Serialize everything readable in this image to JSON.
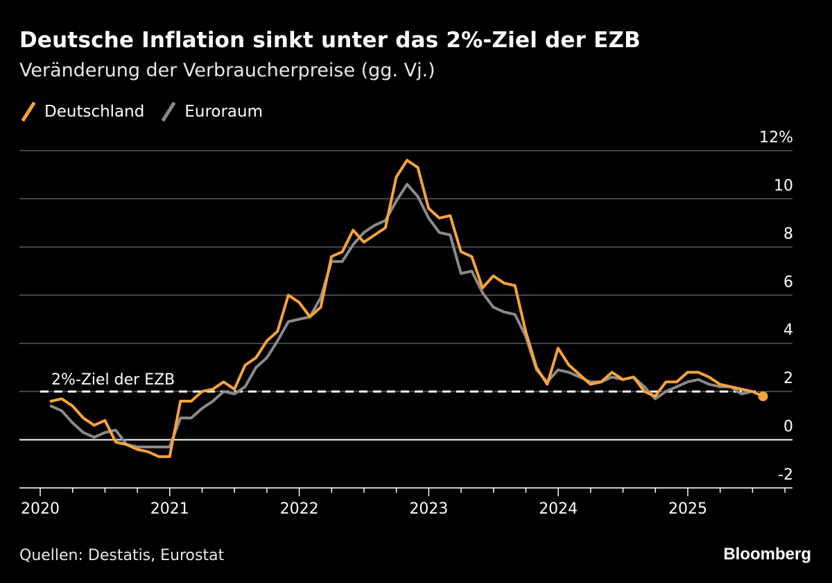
{
  "chart_data": {
    "type": "line",
    "title": "Deutsche Inflation sinkt unter das 2%-Ziel der EZB",
    "subtitle": "Veränderung der Verbraucherpreise (gg. Vj.)",
    "y_unit_label": "12%",
    "yticks": [
      12,
      10,
      8,
      6,
      4,
      2,
      0,
      -2
    ],
    "ylim": [
      -2,
      12
    ],
    "xlim": [
      2020.0,
      2025.83
    ],
    "xticks": [
      2020,
      2021,
      2022,
      2023,
      2024,
      2025
    ],
    "reference_line": {
      "value": 2,
      "label": "2%-Ziel der EZB"
    },
    "source": "Quellen: Destatis, Eurostat",
    "brand": "Bloomberg",
    "colors": {
      "Deutschland": "#f5a43a",
      "Euroraum": "#8a8a8a",
      "grid": "#5a5a5a",
      "axis": "#ffffff"
    },
    "series": [
      {
        "name": "Deutschland",
        "start": 2020.0833,
        "step": 0.0833,
        "values": [
          1.6,
          1.7,
          1.4,
          0.9,
          0.6,
          0.8,
          -0.1,
          -0.2,
          -0.4,
          -0.5,
          -0.7,
          -0.7,
          1.6,
          1.6,
          2.0,
          2.1,
          2.4,
          2.1,
          3.1,
          3.4,
          4.1,
          4.5,
          6.0,
          5.7,
          5.1,
          5.5,
          7.6,
          7.8,
          8.7,
          8.2,
          8.5,
          8.8,
          10.9,
          11.6,
          11.3,
          9.6,
          9.2,
          9.3,
          7.8,
          7.6,
          6.3,
          6.8,
          6.5,
          6.4,
          4.5,
          3.0,
          2.3,
          3.8,
          3.1,
          2.7,
          2.3,
          2.4,
          2.8,
          2.5,
          2.6,
          2.0,
          1.8,
          2.4,
          2.4,
          2.8,
          2.8,
          2.6,
          2.3,
          2.2,
          2.1,
          2.0,
          1.8
        ]
      },
      {
        "name": "Euroraum",
        "start": 2020.0833,
        "step": 0.0833,
        "values": [
          1.4,
          1.2,
          0.7,
          0.3,
          0.1,
          0.3,
          0.4,
          -0.2,
          -0.3,
          -0.3,
          -0.3,
          -0.3,
          0.9,
          0.9,
          1.3,
          1.6,
          2.0,
          1.9,
          2.2,
          3.0,
          3.4,
          4.1,
          4.9,
          5.0,
          5.1,
          5.9,
          7.4,
          7.4,
          8.1,
          8.6,
          8.9,
          9.1,
          9.9,
          10.6,
          10.1,
          9.2,
          8.6,
          8.5,
          6.9,
          7.0,
          6.1,
          5.5,
          5.3,
          5.2,
          4.3,
          2.9,
          2.4,
          2.9,
          2.8,
          2.6,
          2.4,
          2.4,
          2.6,
          2.5,
          2.6,
          2.2,
          1.7,
          2.0,
          2.2,
          2.4,
          2.5,
          2.3,
          2.2,
          2.2,
          1.9,
          2.0
        ]
      }
    ]
  }
}
